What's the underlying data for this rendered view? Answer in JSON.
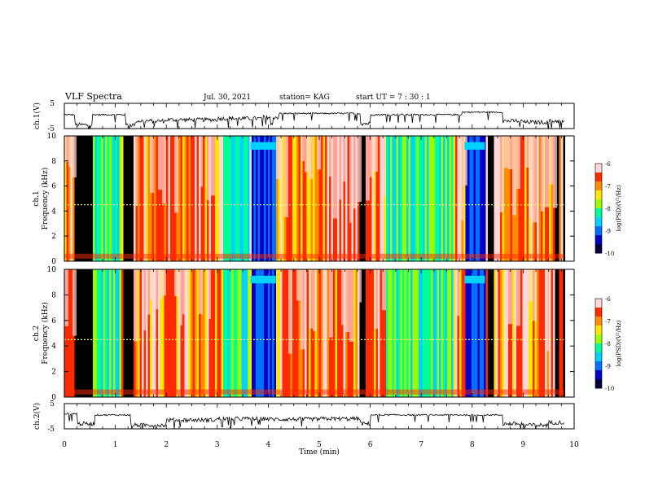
{
  "header": {
    "title": "VLF Spectra",
    "date": "Jul. 30, 2021",
    "station": "station= KAG",
    "start": "start  UT =  7 : 30 : 1"
  },
  "colors": {
    "colormap": [
      "#0000c8",
      "#0070ff",
      "#00d2ff",
      "#00ff96",
      "#9aff00",
      "#ffe600",
      "#ff8c00",
      "#ff2a00",
      "#ffd7d7"
    ],
    "black_band": "#000000",
    "waveform": "#000000"
  },
  "chart_data": [
    {
      "type": "line",
      "name": "ch1-waveform",
      "ylabel": "ch.1(V)",
      "yticks": [
        "5",
        "-5"
      ],
      "ylim": [
        -5,
        5
      ],
      "x": [
        0,
        0.18,
        0.2,
        0.5,
        0.55,
        1.0,
        1.2,
        1.4,
        2.0,
        3.0,
        3.9,
        4.2,
        5.0,
        5.8,
        6.0,
        7.0,
        7.8,
        8.4,
        8.6,
        9.0,
        9.5,
        9.8
      ],
      "y": [
        0.5,
        0.5,
        -3.5,
        -3.5,
        0.5,
        0.5,
        -3.5,
        -2.0,
        -1.5,
        -1.0,
        -0.5,
        1.0,
        1.0,
        -3.0,
        0.5,
        0.5,
        1.5,
        1.5,
        -2.0,
        -2.5,
        -2.0,
        -3.0
      ]
    },
    {
      "type": "heatmap",
      "name": "ch1-spectrogram",
      "ylabel": "ch.1\nFrequency (kHz)",
      "xlim": [
        0,
        10
      ],
      "ylim": [
        0,
        10
      ],
      "yticks": [
        "0",
        "2",
        "4",
        "6",
        "8",
        "10"
      ],
      "colorbar_label": "log(PSD)(V²/Hz)",
      "colorbar_ticks": [
        "-6",
        "-7",
        "-8",
        "-9",
        "-10"
      ],
      "colorbar_range": [
        -10,
        -6
      ]
    },
    {
      "type": "heatmap",
      "name": "ch2-spectrogram",
      "ylabel": "ch.2\nFrequency (kHz)",
      "xlim": [
        0,
        10
      ],
      "ylim": [
        0,
        10
      ],
      "yticks": [
        "0",
        "2",
        "4",
        "6",
        "8",
        "10"
      ],
      "colorbar_label": "log(PSD)(V²/Hz)",
      "colorbar_ticks": [
        "-6",
        "-7",
        "-8",
        "-9",
        "-10"
      ],
      "colorbar_range": [
        -10,
        -6
      ]
    },
    {
      "type": "line",
      "name": "ch2-waveform",
      "ylabel": "ch.2(V)",
      "yticks": [
        "5",
        "-5"
      ],
      "ylim": [
        -5,
        5
      ],
      "x": [
        0,
        0.2,
        0.25,
        0.55,
        0.6,
        1.15,
        1.3,
        2.0,
        3.0,
        4.0,
        5.0,
        5.8,
        6.0,
        7.0,
        8.0,
        8.4,
        8.6,
        9.0,
        9.5,
        9.8
      ],
      "y": [
        1.0,
        1.0,
        -3.0,
        -3.0,
        0.5,
        0.5,
        -3.5,
        -1.5,
        -1.0,
        -1.2,
        -1.0,
        -3.0,
        0.5,
        0.5,
        0.5,
        0.5,
        -3.0,
        -3.5,
        -2.5,
        -3.5
      ]
    }
  ],
  "xaxis": {
    "label": "Time (min)",
    "ticks": [
      "0",
      "1",
      "2",
      "3",
      "4",
      "5",
      "6",
      "7",
      "8",
      "9",
      "10"
    ],
    "xlim": [
      0,
      10
    ]
  },
  "bands": {
    "black": [
      [
        0.18,
        0.52
      ],
      [
        1.15,
        1.35
      ],
      [
        5.78,
        5.9
      ],
      [
        8.3,
        8.42
      ],
      [
        9.62,
        9.68
      ],
      [
        9.75,
        9.8
      ]
    ],
    "blue": [
      [
        3.65,
        4.15
      ],
      [
        7.85,
        8.25
      ]
    ],
    "green": [
      [
        0.52,
        1.1
      ],
      [
        3.1,
        3.6
      ],
      [
        6.3,
        7.6
      ]
    ],
    "red": [
      [
        0.0,
        0.18
      ],
      [
        1.35,
        3.1
      ],
      [
        4.15,
        5.78
      ],
      [
        5.9,
        6.3
      ],
      [
        7.6,
        7.85
      ],
      [
        8.42,
        9.62
      ]
    ]
  }
}
